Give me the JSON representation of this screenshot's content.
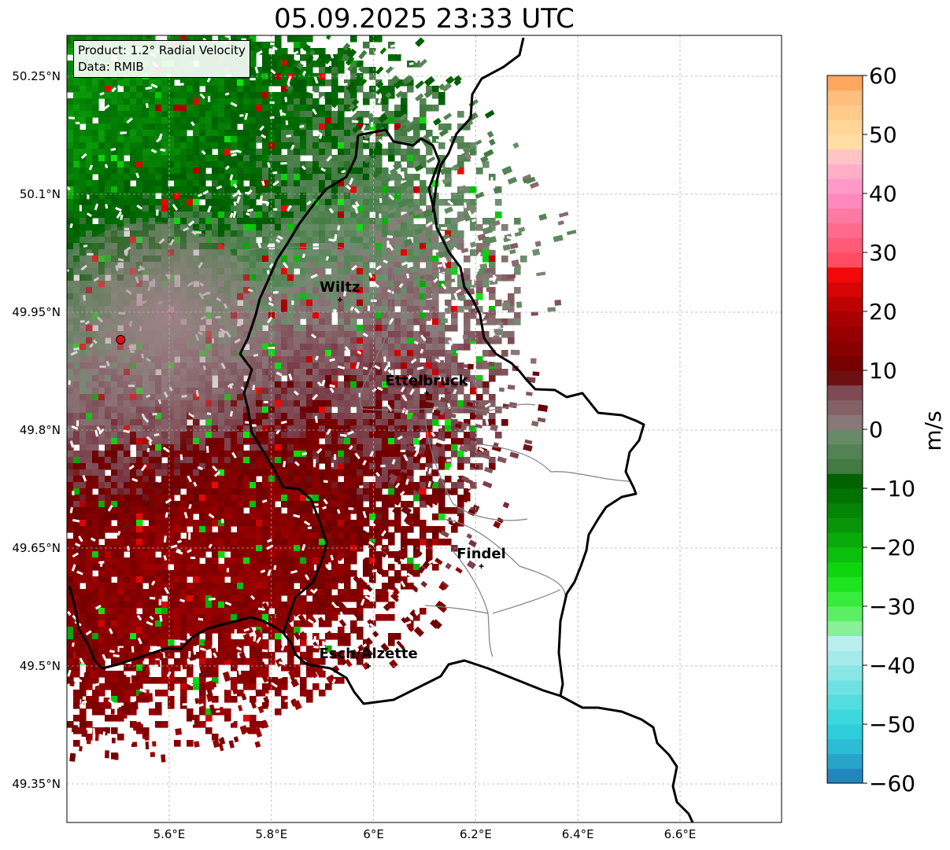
{
  "title": "05.09.2025 23:33 UTC",
  "info": {
    "product": "Product: 1.2° Radial Velocity",
    "data": "Data: RMIB"
  },
  "map": {
    "x_ticks": [
      {
        "value": 5.6,
        "label": "5.6°E"
      },
      {
        "value": 5.8,
        "label": "5.8°E"
      },
      {
        "value": 6.0,
        "label": "6°E"
      },
      {
        "value": 6.2,
        "label": "6.2°E"
      },
      {
        "value": 6.4,
        "label": "6.4°E"
      },
      {
        "value": 6.6,
        "label": "6.6°E"
      }
    ],
    "y_ticks": [
      {
        "value": 50.25,
        "label": "50.25°N"
      },
      {
        "value": 50.1,
        "label": "50.1°N"
      },
      {
        "value": 49.95,
        "label": "49.95°N"
      },
      {
        "value": 49.8,
        "label": "49.8°N"
      },
      {
        "value": 49.65,
        "label": "49.65°N"
      },
      {
        "value": 49.5,
        "label": "49.5°N"
      },
      {
        "value": 49.35,
        "label": "49.35°N"
      }
    ],
    "lon_range": [
      5.4,
      6.8
    ],
    "lat_range": [
      49.3,
      50.3
    ],
    "radar": {
      "name": "radar-site",
      "lon": 5.505,
      "lat": 49.915
    },
    "cities": [
      {
        "name": "Wiltz",
        "lon": 5.934,
        "lat": 49.966
      },
      {
        "name": "Ettelbruck",
        "lon": 6.104,
        "lat": 49.847
      },
      {
        "name": "Findel",
        "lon": 6.211,
        "lat": 49.627
      },
      {
        "name": "Esch/Alzette",
        "lon": 5.99,
        "lat": 49.5
      }
    ]
  },
  "colorbar": {
    "label": "m/s",
    "min": -60,
    "max": 60,
    "ticks": [
      {
        "value": 60,
        "label": "60"
      },
      {
        "value": 50,
        "label": "50"
      },
      {
        "value": 40,
        "label": "40"
      },
      {
        "value": 30,
        "label": "30"
      },
      {
        "value": 20,
        "label": "20"
      },
      {
        "value": 10,
        "label": "10"
      },
      {
        "value": 0,
        "label": "0"
      },
      {
        "value": -10,
        "label": "−10"
      },
      {
        "value": -20,
        "label": "−20"
      },
      {
        "value": -30,
        "label": "−30"
      },
      {
        "value": -40,
        "label": "−40"
      },
      {
        "value": -50,
        "label": "−50"
      },
      {
        "value": -60,
        "label": "−60"
      }
    ],
    "stops": [
      {
        "value": -60,
        "color": "#1f77b4"
      },
      {
        "value": -55,
        "color": "#2bb3d2"
      },
      {
        "value": -50,
        "color": "#2fd6dc"
      },
      {
        "value": -45,
        "color": "#5fdfe0"
      },
      {
        "value": -40,
        "color": "#9ae8e8"
      },
      {
        "value": -36,
        "color": "#bcefef"
      },
      {
        "value": -35,
        "color": "#9ef0b0"
      },
      {
        "value": -30,
        "color": "#44f04a"
      },
      {
        "value": -25,
        "color": "#10e010"
      },
      {
        "value": -20,
        "color": "#0bb40b"
      },
      {
        "value": -15,
        "color": "#078c07"
      },
      {
        "value": -10,
        "color": "#006a00"
      },
      {
        "value": -7,
        "color": "#005a00"
      },
      {
        "value": -6.5,
        "color": "#3f7a3f"
      },
      {
        "value": 0,
        "color": "#6f8f6f"
      },
      {
        "value": 1,
        "color": "#8a7a7a"
      },
      {
        "value": 8,
        "color": "#7a3a46"
      },
      {
        "value": 9,
        "color": "#6a0000"
      },
      {
        "value": 20,
        "color": "#b00000"
      },
      {
        "value": 27.5,
        "color": "#ff0a0a"
      },
      {
        "value": 28.5,
        "color": "#ff4a5f"
      },
      {
        "value": 36,
        "color": "#ff78a0"
      },
      {
        "value": 40,
        "color": "#ff90c8"
      },
      {
        "value": 46,
        "color": "#ffc0c8"
      },
      {
        "value": 49,
        "color": "#ffe0a0"
      },
      {
        "value": 56,
        "color": "#ffc080"
      },
      {
        "value": 60,
        "color": "#ff9a50"
      }
    ]
  },
  "colors": {
    "border": "#000000",
    "canton_border": "#808080",
    "radar_marker": "#e01010",
    "grid": "#b0b0b0"
  }
}
